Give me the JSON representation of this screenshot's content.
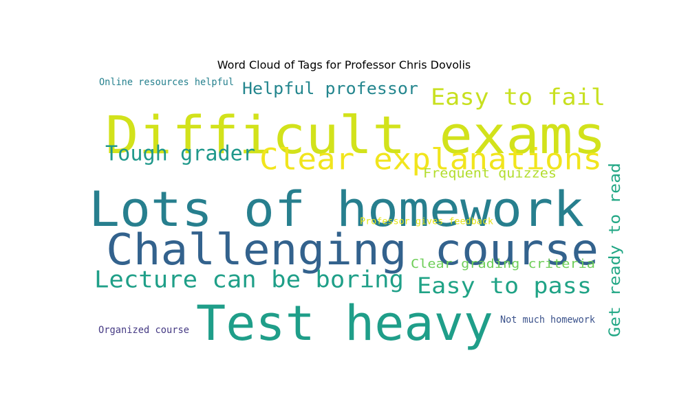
{
  "chart_data": {
    "type": "wordcloud",
    "title": "Word Cloud of Tags for Professor Chris Dovolis",
    "background": "#ffffff",
    "words": [
      {
        "text": "Difficult exams",
        "color": "#d2e21b"
      },
      {
        "text": "Lots of homework",
        "color": "#277f8e"
      },
      {
        "text": "Challenging course",
        "color": "#33628d"
      },
      {
        "text": "Test heavy",
        "color": "#1f9e89"
      },
      {
        "text": "Clear explanations",
        "color": "#f1e51d"
      },
      {
        "text": "Easy to fail",
        "color": "#c8e020"
      },
      {
        "text": "Tough grader",
        "color": "#1f988b"
      },
      {
        "text": "Helpful professor",
        "color": "#24868e"
      },
      {
        "text": "Lecture can be boring",
        "color": "#1f9f88"
      },
      {
        "text": "Easy to pass",
        "color": "#20a386"
      },
      {
        "text": "Get ready to read",
        "color": "#22a785"
      },
      {
        "text": "Frequent quizzes",
        "color": "#b2dd2d"
      },
      {
        "text": "Clear grading criteria",
        "color": "#6ece58"
      },
      {
        "text": "Professor gives feedback",
        "color": "#e5e419"
      },
      {
        "text": "Online resources helpful",
        "color": "#26818e"
      },
      {
        "text": "Organized course",
        "color": "#443983"
      },
      {
        "text": "Not much homework",
        "color": "#3b528b"
      }
    ]
  }
}
